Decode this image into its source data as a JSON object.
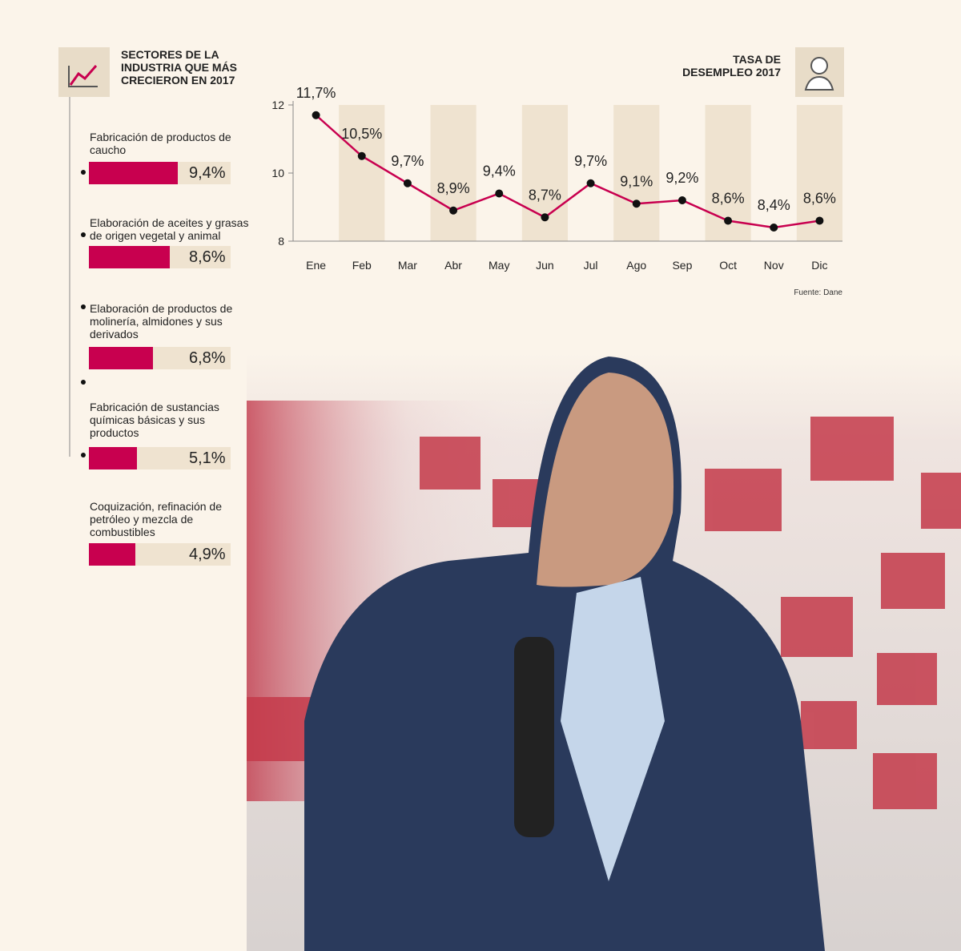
{
  "chart_data": [
    {
      "type": "hbar",
      "title": "SECTORES DE LA INDUSTRIA QUE MÁS CRECIERON EN 2017",
      "categories": [
        "Fabricación de productos de caucho",
        "Elaboración de aceites y grasas de origen vegetal y animal",
        "Elaboración de productos de molinería, almidones y sus derivados",
        "Fabricación de sustancias químicas básicas y sus productos",
        "Coquización, refinación de petróleo y mezcla de combustibles"
      ],
      "values": [
        9.4,
        8.6,
        6.8,
        5.1,
        4.9
      ],
      "value_labels": [
        "9,4%",
        "8,6%",
        "6,8%",
        "5,1%",
        "4,9%"
      ],
      "color": "#c8004f"
    },
    {
      "type": "line",
      "title": "TASA DE DESEMPLEO 2017",
      "categories": [
        "Ene",
        "Feb",
        "Mar",
        "Abr",
        "May",
        "Jun",
        "Jul",
        "Ago",
        "Sep",
        "Oct",
        "Nov",
        "Dic"
      ],
      "values": [
        11.7,
        10.5,
        9.7,
        8.9,
        9.4,
        8.7,
        9.7,
        9.1,
        9.2,
        8.6,
        8.4,
        8.6
      ],
      "value_labels": [
        "11,7%",
        "10,5%",
        "9,7%",
        "8,9%",
        "9,4%",
        "8,7%",
        "9,7%",
        "9,1%",
        "9,2%",
        "8,6%",
        "8,4%",
        "8,6%"
      ],
      "color": "#c8004f",
      "ylim": [
        8,
        12
      ],
      "yticks": [
        8,
        10,
        12
      ],
      "source": "Fuente: Dane"
    }
  ]
}
